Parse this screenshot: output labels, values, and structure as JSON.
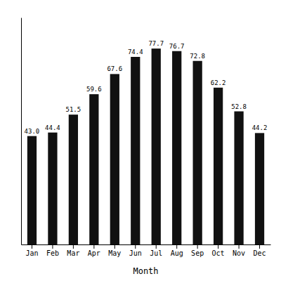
{
  "chart_data": {
    "type": "bar",
    "categories": [
      "Jan",
      "Feb",
      "Mar",
      "Apr",
      "May",
      "Jun",
      "Jul",
      "Aug",
      "Sep",
      "Oct",
      "Nov",
      "Dec"
    ],
    "values": [
      43.0,
      44.4,
      51.5,
      59.6,
      67.6,
      74.4,
      77.7,
      76.7,
      72.8,
      62.2,
      52.8,
      44.2
    ],
    "value_labels": [
      "43.0",
      "44.4",
      "51.5",
      "59.6",
      "67.6",
      "74.4",
      "77.7",
      "76.7",
      "72.8",
      "62.2",
      "52.8",
      "44.2"
    ],
    "color": "#111111",
    "xlabel": "Month",
    "ylim": [
      0,
      90
    ],
    "grid": false,
    "data_labels": true,
    "tick_labels": "x"
  }
}
